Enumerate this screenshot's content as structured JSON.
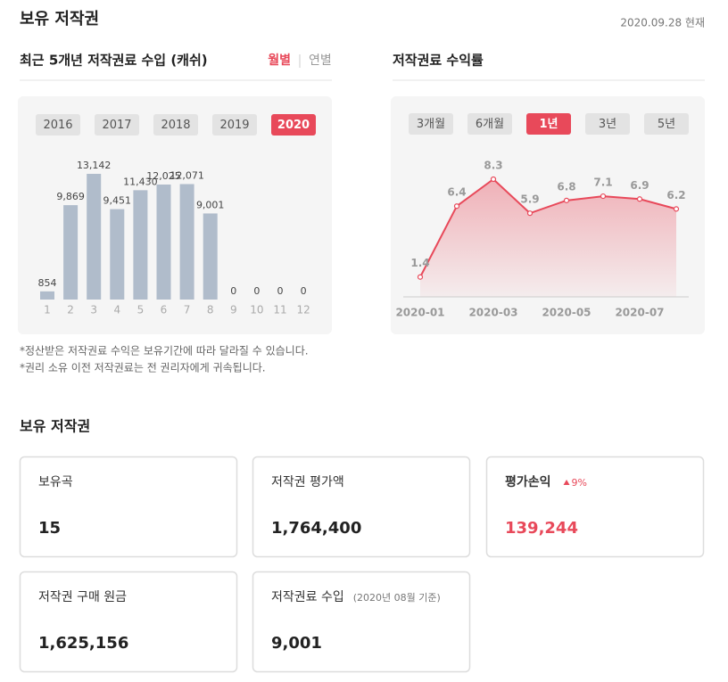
{
  "header": {
    "title": "보유 저작권",
    "date": "2020.09.28 현재"
  },
  "income_section": {
    "title": "최근 5개년 저작권료 수입 (캐쉬)",
    "toggle": [
      "월별",
      "연별"
    ],
    "active_toggle": 0,
    "years": [
      "2016",
      "2017",
      "2018",
      "2019",
      "2020"
    ],
    "active_year": 4
  },
  "yield_section": {
    "title": "저작권료 수익률",
    "periods": [
      "3개월",
      "6개월",
      "1년",
      "3년",
      "5년"
    ],
    "active_period": 2
  },
  "notes": [
    "*정산받은 저작권료 수익은 보유기간에 따라 달라질 수 있습니다.",
    "*권리 소유 이전 저작권료는 전 권리자에게 귀속됩니다."
  ],
  "chart_data": [
    {
      "type": "bar",
      "color": "#b0bccb",
      "categories": [
        "1",
        "2",
        "3",
        "4",
        "5",
        "6",
        "7",
        "8",
        "9",
        "10",
        "11",
        "12"
      ],
      "values": [
        854,
        9869,
        13142,
        9451,
        11430,
        12025,
        12071,
        9001,
        0,
        0,
        0,
        0
      ],
      "value_labels": [
        "854",
        "9,869",
        "13,142",
        "9,451",
        "11,430",
        "12,025",
        "12,071",
        "9,001",
        "0",
        "0",
        "0",
        "0"
      ]
    },
    {
      "type": "line",
      "color": "#e8495a",
      "categories": [
        "2020-01",
        null,
        "2020-03",
        null,
        "2020-05",
        null,
        "2020-07",
        null
      ],
      "values": [
        1.4,
        6.4,
        8.3,
        5.9,
        6.8,
        7.1,
        6.9,
        6.2
      ]
    }
  ],
  "holdings": {
    "title": "보유 저작권",
    "cards": [
      {
        "label": "보유곡",
        "value": "15"
      },
      {
        "label": "저작권 평가액",
        "value": "1,764,400"
      },
      {
        "label": "평가손익",
        "change": "9%",
        "value": "139,244"
      },
      {
        "label": "저작권 구매 원금",
        "value": "1,625,156"
      },
      {
        "label": "저작권료 수입",
        "note": "(2020년 08월 기준)",
        "value": "9,001"
      }
    ]
  }
}
